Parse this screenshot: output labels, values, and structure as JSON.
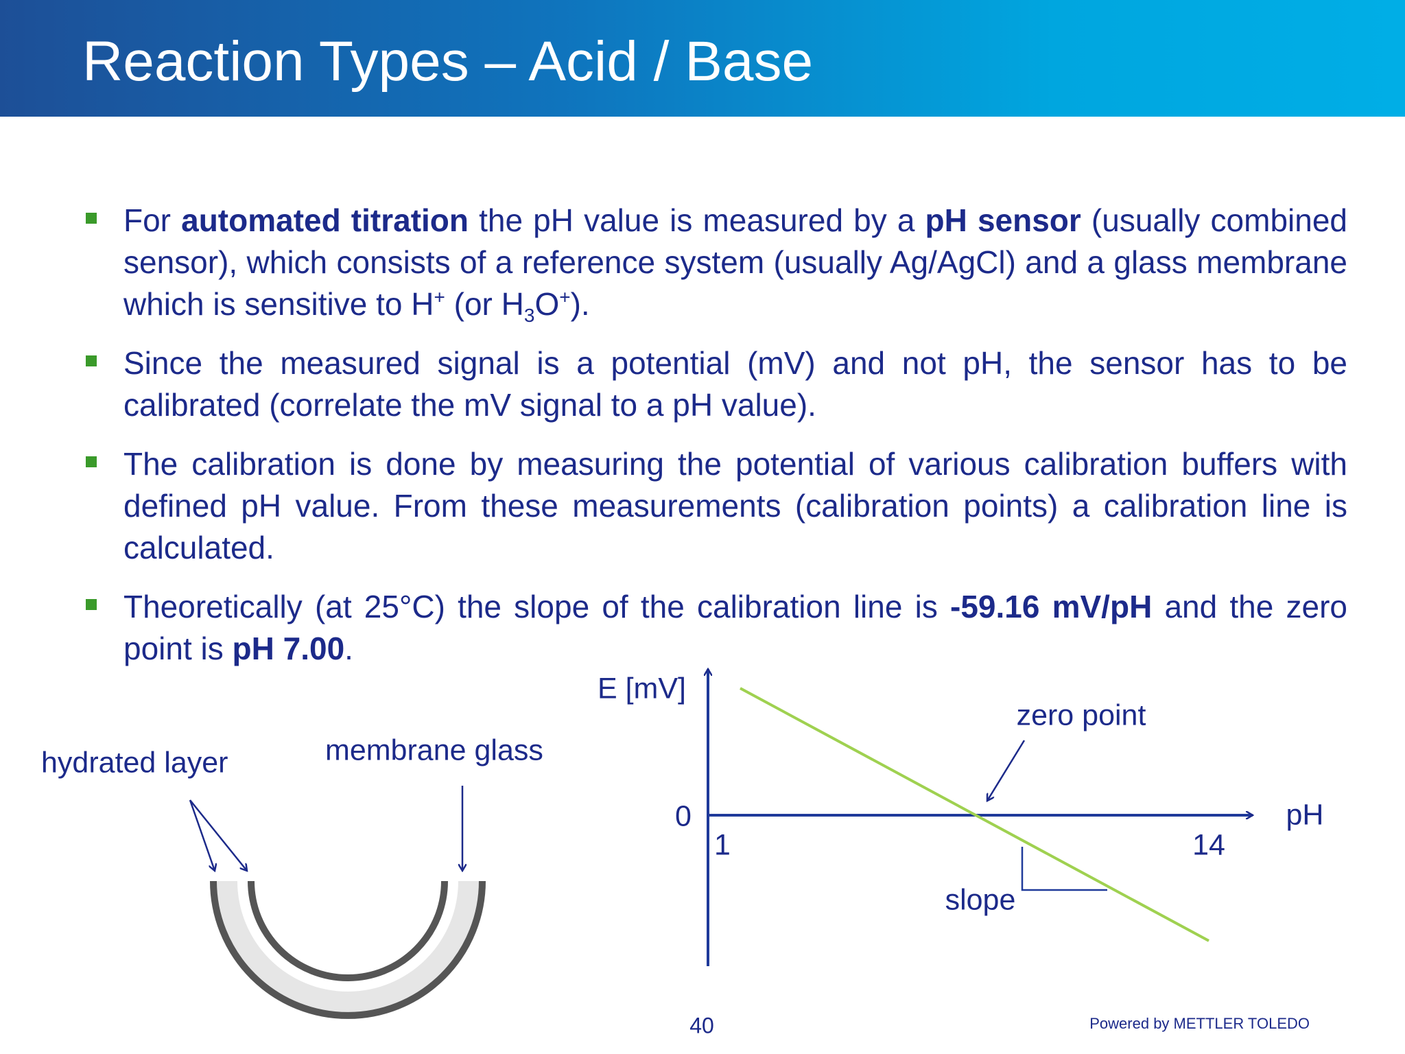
{
  "header": {
    "title": "Reaction Types – Acid / Base"
  },
  "bullets": [
    {
      "runs": [
        {
          "text": "For "
        },
        {
          "text": "automated titration",
          "format": "bold"
        },
        {
          "text": " the pH value is measured by a "
        },
        {
          "text": "pH sensor",
          "format": "bold"
        },
        {
          "text": " (usually combined sensor), which consists of a reference system (usually Ag/AgCl) and a glass membrane which is sensitive to H"
        },
        {
          "text": "+",
          "format": "sup"
        },
        {
          "text": " (or H"
        },
        {
          "text": "3",
          "format": "sub"
        },
        {
          "text": "O"
        },
        {
          "text": "+",
          "format": "sup"
        },
        {
          "text": ")."
        }
      ]
    },
    {
      "runs": [
        {
          "text": "Since the measured signal is a potential (mV) and not pH, the sensor has to be calibrated (correlate the mV signal to a pH value)."
        }
      ]
    },
    {
      "runs": [
        {
          "text": "The calibration is done by measuring the potential of various calibration buffers with defined pH value. From these measurements (calibration points) a calibration line is calculated."
        }
      ]
    },
    {
      "runs": [
        {
          "text": "Theoretically (at 25°C) the slope of the calibration line is "
        },
        {
          "text": "-59.16 mV/pH",
          "format": "bold"
        },
        {
          "text": " and the zero point is "
        },
        {
          "text": "pH 7.00",
          "format": "bold"
        },
        {
          "text": "."
        }
      ]
    }
  ],
  "membrane": {
    "hydrated_label": "hydrated layer",
    "glass_label": "membrane glass"
  },
  "graph": {
    "y_label": "E [mV]",
    "x_label": "pH",
    "origin_label": "0",
    "x_start_label": "1",
    "x_end_label": "14",
    "zero_point_label": "zero point",
    "slope_label": "slope"
  },
  "footer": {
    "page_number": "40",
    "credit": "Powered by METTLER TOLEDO"
  }
}
